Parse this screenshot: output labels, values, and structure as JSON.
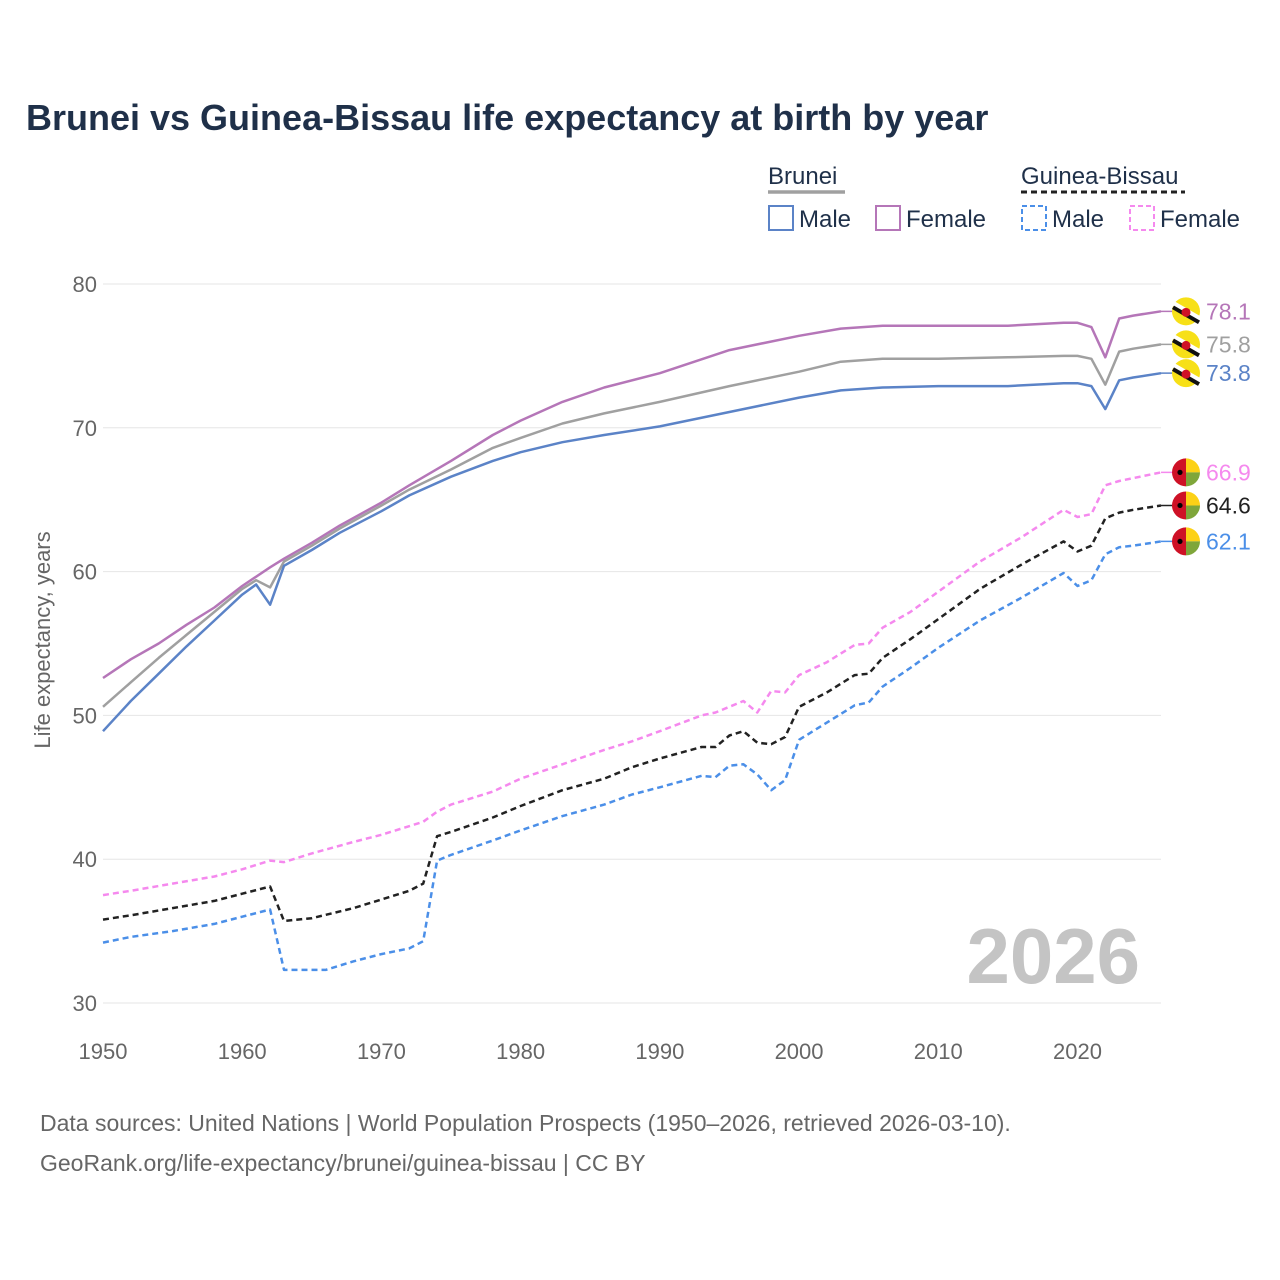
{
  "chart_data": {
    "type": "line",
    "title": "Brunei vs Guinea-Bissau life expectancy at birth by year",
    "ylabel": "Life expectancy, years",
    "xlabel": "",
    "xlim": [
      1950,
      2026
    ],
    "ylim": [
      30,
      80
    ],
    "xticks": [
      "1950",
      "1960",
      "1970",
      "1980",
      "1990",
      "2000",
      "2010",
      "2020"
    ],
    "yticks": [
      "30",
      "40",
      "50",
      "60",
      "70",
      "80"
    ],
    "year_watermark": "2026",
    "legend": {
      "groups": [
        {
          "name": "Brunei",
          "items": [
            "Male",
            "Female"
          ]
        },
        {
          "name": "Guinea-Bissau",
          "items": [
            "Male",
            "Female"
          ]
        }
      ]
    },
    "series": [
      {
        "name": "Brunei Female",
        "country": "Brunei",
        "sex": "Female",
        "color": "#b576b8",
        "dashed": false,
        "end_label": "78.1",
        "points": [
          [
            1950,
            52.6
          ],
          [
            1952,
            53.9
          ],
          [
            1954,
            55.0
          ],
          [
            1956,
            56.3
          ],
          [
            1958,
            57.5
          ],
          [
            1960,
            59.0
          ],
          [
            1962,
            60.3
          ],
          [
            1963,
            60.9
          ],
          [
            1965,
            62.0
          ],
          [
            1967,
            63.2
          ],
          [
            1970,
            64.8
          ],
          [
            1972,
            66.0
          ],
          [
            1975,
            67.7
          ],
          [
            1978,
            69.5
          ],
          [
            1980,
            70.5
          ],
          [
            1983,
            71.8
          ],
          [
            1986,
            72.8
          ],
          [
            1990,
            73.8
          ],
          [
            1995,
            75.4
          ],
          [
            2000,
            76.4
          ],
          [
            2003,
            76.9
          ],
          [
            2006,
            77.1
          ],
          [
            2010,
            77.1
          ],
          [
            2015,
            77.1
          ],
          [
            2019,
            77.3
          ],
          [
            2020,
            77.3
          ],
          [
            2021,
            77.0
          ],
          [
            2022,
            74.9
          ],
          [
            2023,
            77.6
          ],
          [
            2024,
            77.8
          ],
          [
            2026,
            78.1
          ]
        ]
      },
      {
        "name": "Brunei Total",
        "country": "Brunei",
        "sex": "Total",
        "color": "#a0a0a0",
        "dashed": false,
        "end_label": "75.8",
        "points": [
          [
            1950,
            50.6
          ],
          [
            1952,
            52.3
          ],
          [
            1954,
            54.0
          ],
          [
            1956,
            55.6
          ],
          [
            1958,
            57.2
          ],
          [
            1960,
            58.8
          ],
          [
            1961,
            59.4
          ],
          [
            1962,
            58.9
          ],
          [
            1963,
            60.7
          ],
          [
            1965,
            61.8
          ],
          [
            1967,
            63.0
          ],
          [
            1970,
            64.6
          ],
          [
            1972,
            65.7
          ],
          [
            1975,
            67.1
          ],
          [
            1978,
            68.6
          ],
          [
            1980,
            69.3
          ],
          [
            1983,
            70.3
          ],
          [
            1986,
            71.0
          ],
          [
            1990,
            71.8
          ],
          [
            1995,
            72.9
          ],
          [
            2000,
            73.9
          ],
          [
            2003,
            74.6
          ],
          [
            2006,
            74.8
          ],
          [
            2010,
            74.8
          ],
          [
            2015,
            74.9
          ],
          [
            2019,
            75.0
          ],
          [
            2020,
            75.0
          ],
          [
            2021,
            74.8
          ],
          [
            2022,
            73.0
          ],
          [
            2023,
            75.3
          ],
          [
            2024,
            75.5
          ],
          [
            2026,
            75.8
          ]
        ]
      },
      {
        "name": "Brunei Male",
        "country": "Brunei",
        "sex": "Male",
        "color": "#5b83c7",
        "dashed": false,
        "end_label": "73.8",
        "points": [
          [
            1950,
            48.9
          ],
          [
            1952,
            51.0
          ],
          [
            1954,
            52.9
          ],
          [
            1956,
            54.8
          ],
          [
            1958,
            56.6
          ],
          [
            1960,
            58.4
          ],
          [
            1961,
            59.1
          ],
          [
            1962,
            57.7
          ],
          [
            1963,
            60.4
          ],
          [
            1965,
            61.5
          ],
          [
            1967,
            62.7
          ],
          [
            1970,
            64.2
          ],
          [
            1972,
            65.3
          ],
          [
            1975,
            66.6
          ],
          [
            1978,
            67.7
          ],
          [
            1980,
            68.3
          ],
          [
            1983,
            69.0
          ],
          [
            1986,
            69.5
          ],
          [
            1990,
            70.1
          ],
          [
            1995,
            71.1
          ],
          [
            2000,
            72.1
          ],
          [
            2003,
            72.6
          ],
          [
            2006,
            72.8
          ],
          [
            2010,
            72.9
          ],
          [
            2015,
            72.9
          ],
          [
            2019,
            73.1
          ],
          [
            2020,
            73.1
          ],
          [
            2021,
            72.9
          ],
          [
            2022,
            71.3
          ],
          [
            2023,
            73.3
          ],
          [
            2024,
            73.5
          ],
          [
            2026,
            73.8
          ]
        ]
      },
      {
        "name": "Guinea-Bissau Female",
        "country": "Guinea-Bissau",
        "sex": "Female",
        "color": "#f589ee",
        "dashed": true,
        "end_label": "66.9",
        "points": [
          [
            1950,
            37.5
          ],
          [
            1952,
            37.8
          ],
          [
            1955,
            38.3
          ],
          [
            1958,
            38.8
          ],
          [
            1960,
            39.3
          ],
          [
            1962,
            39.9
          ],
          [
            1963,
            39.8
          ],
          [
            1965,
            40.4
          ],
          [
            1968,
            41.2
          ],
          [
            1970,
            41.7
          ],
          [
            1973,
            42.6
          ],
          [
            1974,
            43.3
          ],
          [
            1975,
            43.8
          ],
          [
            1978,
            44.7
          ],
          [
            1980,
            45.6
          ],
          [
            1983,
            46.6
          ],
          [
            1986,
            47.6
          ],
          [
            1988,
            48.2
          ],
          [
            1990,
            48.9
          ],
          [
            1993,
            50.0
          ],
          [
            1994,
            50.2
          ],
          [
            1995,
            50.6
          ],
          [
            1996,
            51.0
          ],
          [
            1997,
            50.2
          ],
          [
            1998,
            51.7
          ],
          [
            1999,
            51.6
          ],
          [
            2000,
            52.8
          ],
          [
            2002,
            53.7
          ],
          [
            2004,
            54.9
          ],
          [
            2005,
            55.0
          ],
          [
            2006,
            56.1
          ],
          [
            2008,
            57.2
          ],
          [
            2010,
            58.6
          ],
          [
            2013,
            60.7
          ],
          [
            2016,
            62.4
          ],
          [
            2019,
            64.3
          ],
          [
            2020,
            63.8
          ],
          [
            2021,
            64.0
          ],
          [
            2022,
            66.0
          ],
          [
            2023,
            66.3
          ],
          [
            2024,
            66.5
          ],
          [
            2026,
            66.9
          ]
        ]
      },
      {
        "name": "Guinea-Bissau Total",
        "country": "Guinea-Bissau",
        "sex": "Total",
        "color": "#222222",
        "dashed": true,
        "end_label": "64.6",
        "points": [
          [
            1950,
            35.8
          ],
          [
            1952,
            36.1
          ],
          [
            1955,
            36.6
          ],
          [
            1958,
            37.1
          ],
          [
            1960,
            37.6
          ],
          [
            1962,
            38.1
          ],
          [
            1963,
            35.7
          ],
          [
            1965,
            35.9
          ],
          [
            1968,
            36.6
          ],
          [
            1970,
            37.2
          ],
          [
            1972,
            37.8
          ],
          [
            1973,
            38.3
          ],
          [
            1974,
            41.6
          ],
          [
            1975,
            41.9
          ],
          [
            1978,
            42.9
          ],
          [
            1980,
            43.7
          ],
          [
            1983,
            44.8
          ],
          [
            1986,
            45.6
          ],
          [
            1988,
            46.4
          ],
          [
            1990,
            47.0
          ],
          [
            1993,
            47.8
          ],
          [
            1994,
            47.8
          ],
          [
            1995,
            48.6
          ],
          [
            1996,
            48.9
          ],
          [
            1997,
            48.1
          ],
          [
            1998,
            48.0
          ],
          [
            1999,
            48.5
          ],
          [
            2000,
            50.6
          ],
          [
            2002,
            51.6
          ],
          [
            2004,
            52.8
          ],
          [
            2005,
            52.9
          ],
          [
            2006,
            54.0
          ],
          [
            2008,
            55.3
          ],
          [
            2010,
            56.7
          ],
          [
            2013,
            58.8
          ],
          [
            2016,
            60.5
          ],
          [
            2019,
            62.1
          ],
          [
            2020,
            61.4
          ],
          [
            2021,
            61.8
          ],
          [
            2022,
            63.7
          ],
          [
            2023,
            64.1
          ],
          [
            2024,
            64.3
          ],
          [
            2026,
            64.6
          ]
        ]
      },
      {
        "name": "Guinea-Bissau Male",
        "country": "Guinea-Bissau",
        "sex": "Male",
        "color": "#4b8fe8",
        "dashed": true,
        "end_label": "62.1",
        "points": [
          [
            1950,
            34.2
          ],
          [
            1952,
            34.6
          ],
          [
            1955,
            35.0
          ],
          [
            1958,
            35.5
          ],
          [
            1960,
            36.0
          ],
          [
            1962,
            36.5
          ],
          [
            1963,
            32.3
          ],
          [
            1966,
            32.3
          ],
          [
            1968,
            32.9
          ],
          [
            1970,
            33.4
          ],
          [
            1972,
            33.8
          ],
          [
            1973,
            34.3
          ],
          [
            1974,
            39.9
          ],
          [
            1975,
            40.3
          ],
          [
            1978,
            41.3
          ],
          [
            1980,
            42.0
          ],
          [
            1983,
            43.0
          ],
          [
            1986,
            43.8
          ],
          [
            1988,
            44.5
          ],
          [
            1990,
            45.0
          ],
          [
            1993,
            45.8
          ],
          [
            1994,
            45.7
          ],
          [
            1995,
            46.5
          ],
          [
            1996,
            46.6
          ],
          [
            1997,
            45.9
          ],
          [
            1998,
            44.8
          ],
          [
            1999,
            45.5
          ],
          [
            2000,
            48.3
          ],
          [
            2002,
            49.5
          ],
          [
            2004,
            50.7
          ],
          [
            2005,
            50.9
          ],
          [
            2006,
            52.0
          ],
          [
            2008,
            53.3
          ],
          [
            2010,
            54.7
          ],
          [
            2013,
            56.6
          ],
          [
            2016,
            58.2
          ],
          [
            2019,
            59.9
          ],
          [
            2020,
            59.0
          ],
          [
            2021,
            59.4
          ],
          [
            2022,
            61.2
          ],
          [
            2023,
            61.7
          ],
          [
            2024,
            61.8
          ],
          [
            2026,
            62.1
          ]
        ]
      }
    ]
  },
  "source": {
    "line1": "Data sources: United Nations | World Population Prospects (1950–2026, retrieved 2026-03-10).",
    "line2": "GeoRank.org/life-expectancy/brunei/guinea-bissau | CC BY"
  }
}
